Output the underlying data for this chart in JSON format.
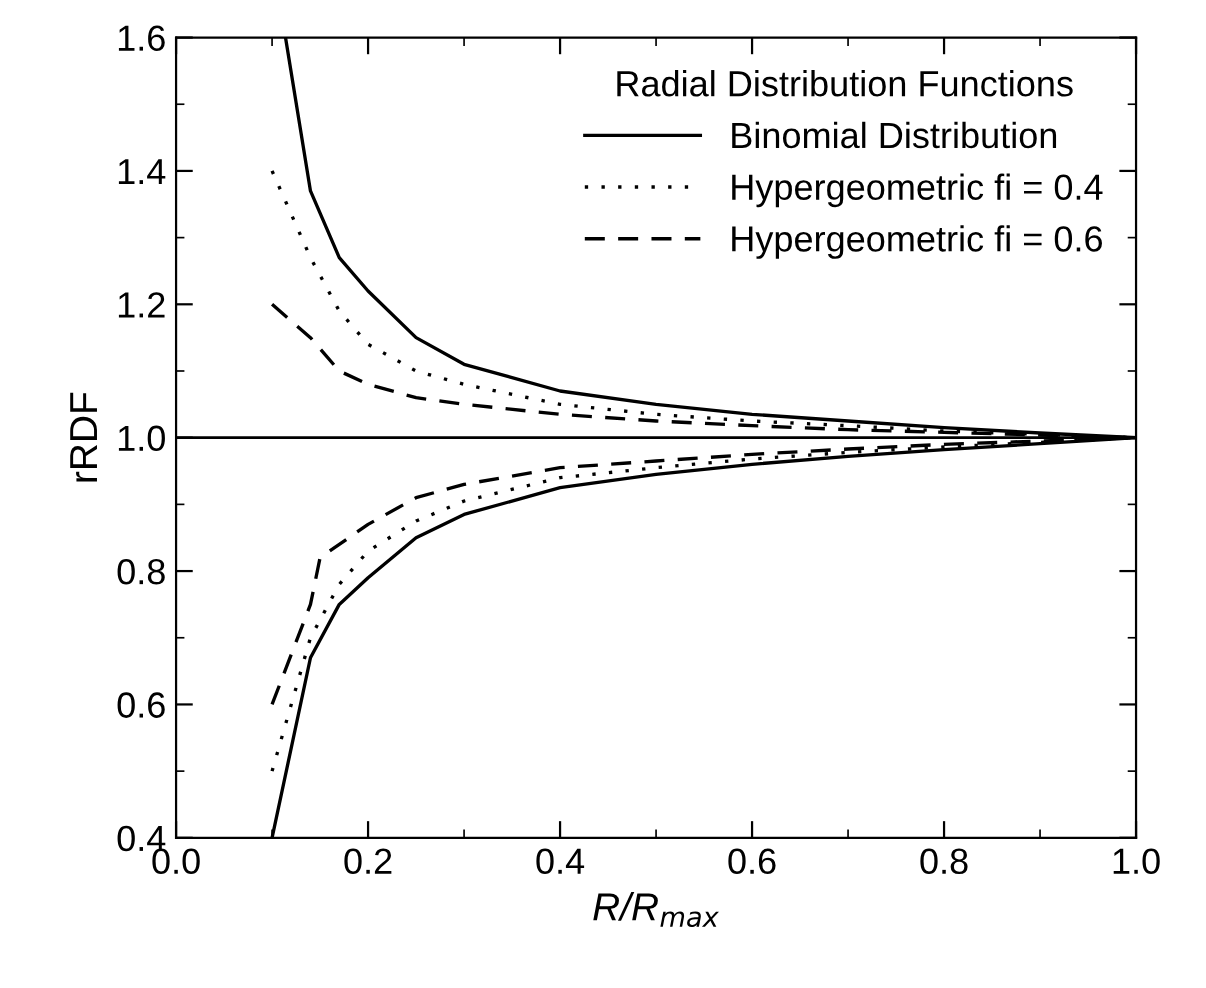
{
  "chart_data": {
    "type": "line",
    "xlabel": "R/R$_{max}$",
    "ylabel": "rRDF",
    "legend_title": "Radial Distribution Functions",
    "xlim": [
      0.0,
      1.0
    ],
    "ylim": [
      0.4,
      1.6
    ],
    "xticks": [
      {
        "value": 0.0,
        "label": "0.0"
      },
      {
        "value": 0.2,
        "label": "0.2"
      },
      {
        "value": 0.4,
        "label": "0.4"
      },
      {
        "value": 0.6,
        "label": "0.6"
      },
      {
        "value": 0.8,
        "label": "0.8"
      },
      {
        "value": 1.0,
        "label": "1.0"
      }
    ],
    "yticks": [
      {
        "value": 0.4,
        "label": "0.4"
      },
      {
        "value": 0.6,
        "label": "0.6"
      },
      {
        "value": 0.8,
        "label": "0.8"
      },
      {
        "value": 1.0,
        "label": "1.0"
      },
      {
        "value": 1.2,
        "label": "1.2"
      },
      {
        "value": 1.4,
        "label": "1.4"
      },
      {
        "value": 1.6,
        "label": "1.6"
      }
    ],
    "grid": false,
    "legend": "top right",
    "marker": "none",
    "ref_lines": [
      {
        "axis": "y",
        "value": 1.0,
        "color": "#000000",
        "line_style": "solid"
      }
    ],
    "series": [
      {
        "name": "Binomial Distribution",
        "color": "#000000",
        "line_style": "solid",
        "x": [
          0.114,
          0.14,
          0.17,
          0.2,
          0.25,
          0.3,
          0.4,
          0.5,
          0.6,
          0.7,
          0.8,
          0.9,
          1.0
        ],
        "values": [
          1.6,
          1.37,
          1.27,
          1.22,
          1.15,
          1.11,
          1.07,
          1.05,
          1.035,
          1.025,
          1.015,
          1.007,
          1.0
        ]
      },
      {
        "color": "#000000",
        "line_style": "solid",
        "x": [
          0.1,
          0.14,
          0.17,
          0.2,
          0.25,
          0.3,
          0.4,
          0.5,
          0.6,
          0.7,
          0.8,
          0.9,
          1.0
        ],
        "values": [
          0.4,
          0.67,
          0.75,
          0.79,
          0.85,
          0.885,
          0.925,
          0.945,
          0.96,
          0.972,
          0.982,
          0.991,
          1.0
        ]
      },
      {
        "name": "Hypergeometric fi = 0.4",
        "color": "#000000",
        "line_style": "dotted",
        "x": [
          0.1,
          0.14,
          0.17,
          0.2,
          0.25,
          0.3,
          0.4,
          0.5,
          0.6,
          0.7,
          0.8,
          0.9,
          1.0
        ],
        "values": [
          1.4,
          1.27,
          1.19,
          1.14,
          1.1,
          1.08,
          1.05,
          1.035,
          1.025,
          1.018,
          1.01,
          1.005,
          1.0
        ]
      },
      {
        "color": "#000000",
        "line_style": "dotted",
        "x": [
          0.1,
          0.14,
          0.17,
          0.2,
          0.25,
          0.3,
          0.4,
          0.5,
          0.6,
          0.7,
          0.8,
          0.9,
          1.0
        ],
        "values": [
          0.5,
          0.7,
          0.78,
          0.83,
          0.875,
          0.905,
          0.94,
          0.955,
          0.968,
          0.978,
          0.986,
          0.993,
          1.0
        ]
      },
      {
        "name": "Hypergeometric fi = 0.6",
        "color": "#000000",
        "line_style": "dashed",
        "x": [
          0.1,
          0.14,
          0.17,
          0.2,
          0.25,
          0.3,
          0.4,
          0.5,
          0.6,
          0.7,
          0.8,
          0.9,
          1.0
        ],
        "values": [
          1.2,
          1.15,
          1.1,
          1.08,
          1.06,
          1.05,
          1.035,
          1.025,
          1.018,
          1.012,
          1.008,
          1.004,
          1.0
        ]
      },
      {
        "color": "#000000",
        "line_style": "dashed",
        "x": [
          0.1,
          0.14,
          0.15,
          0.2,
          0.25,
          0.3,
          0.4,
          0.5,
          0.6,
          0.7,
          0.8,
          0.9,
          1.0
        ],
        "values": [
          0.6,
          0.75,
          0.82,
          0.87,
          0.91,
          0.93,
          0.955,
          0.965,
          0.975,
          0.983,
          0.99,
          0.995,
          1.0
        ]
      }
    ]
  }
}
